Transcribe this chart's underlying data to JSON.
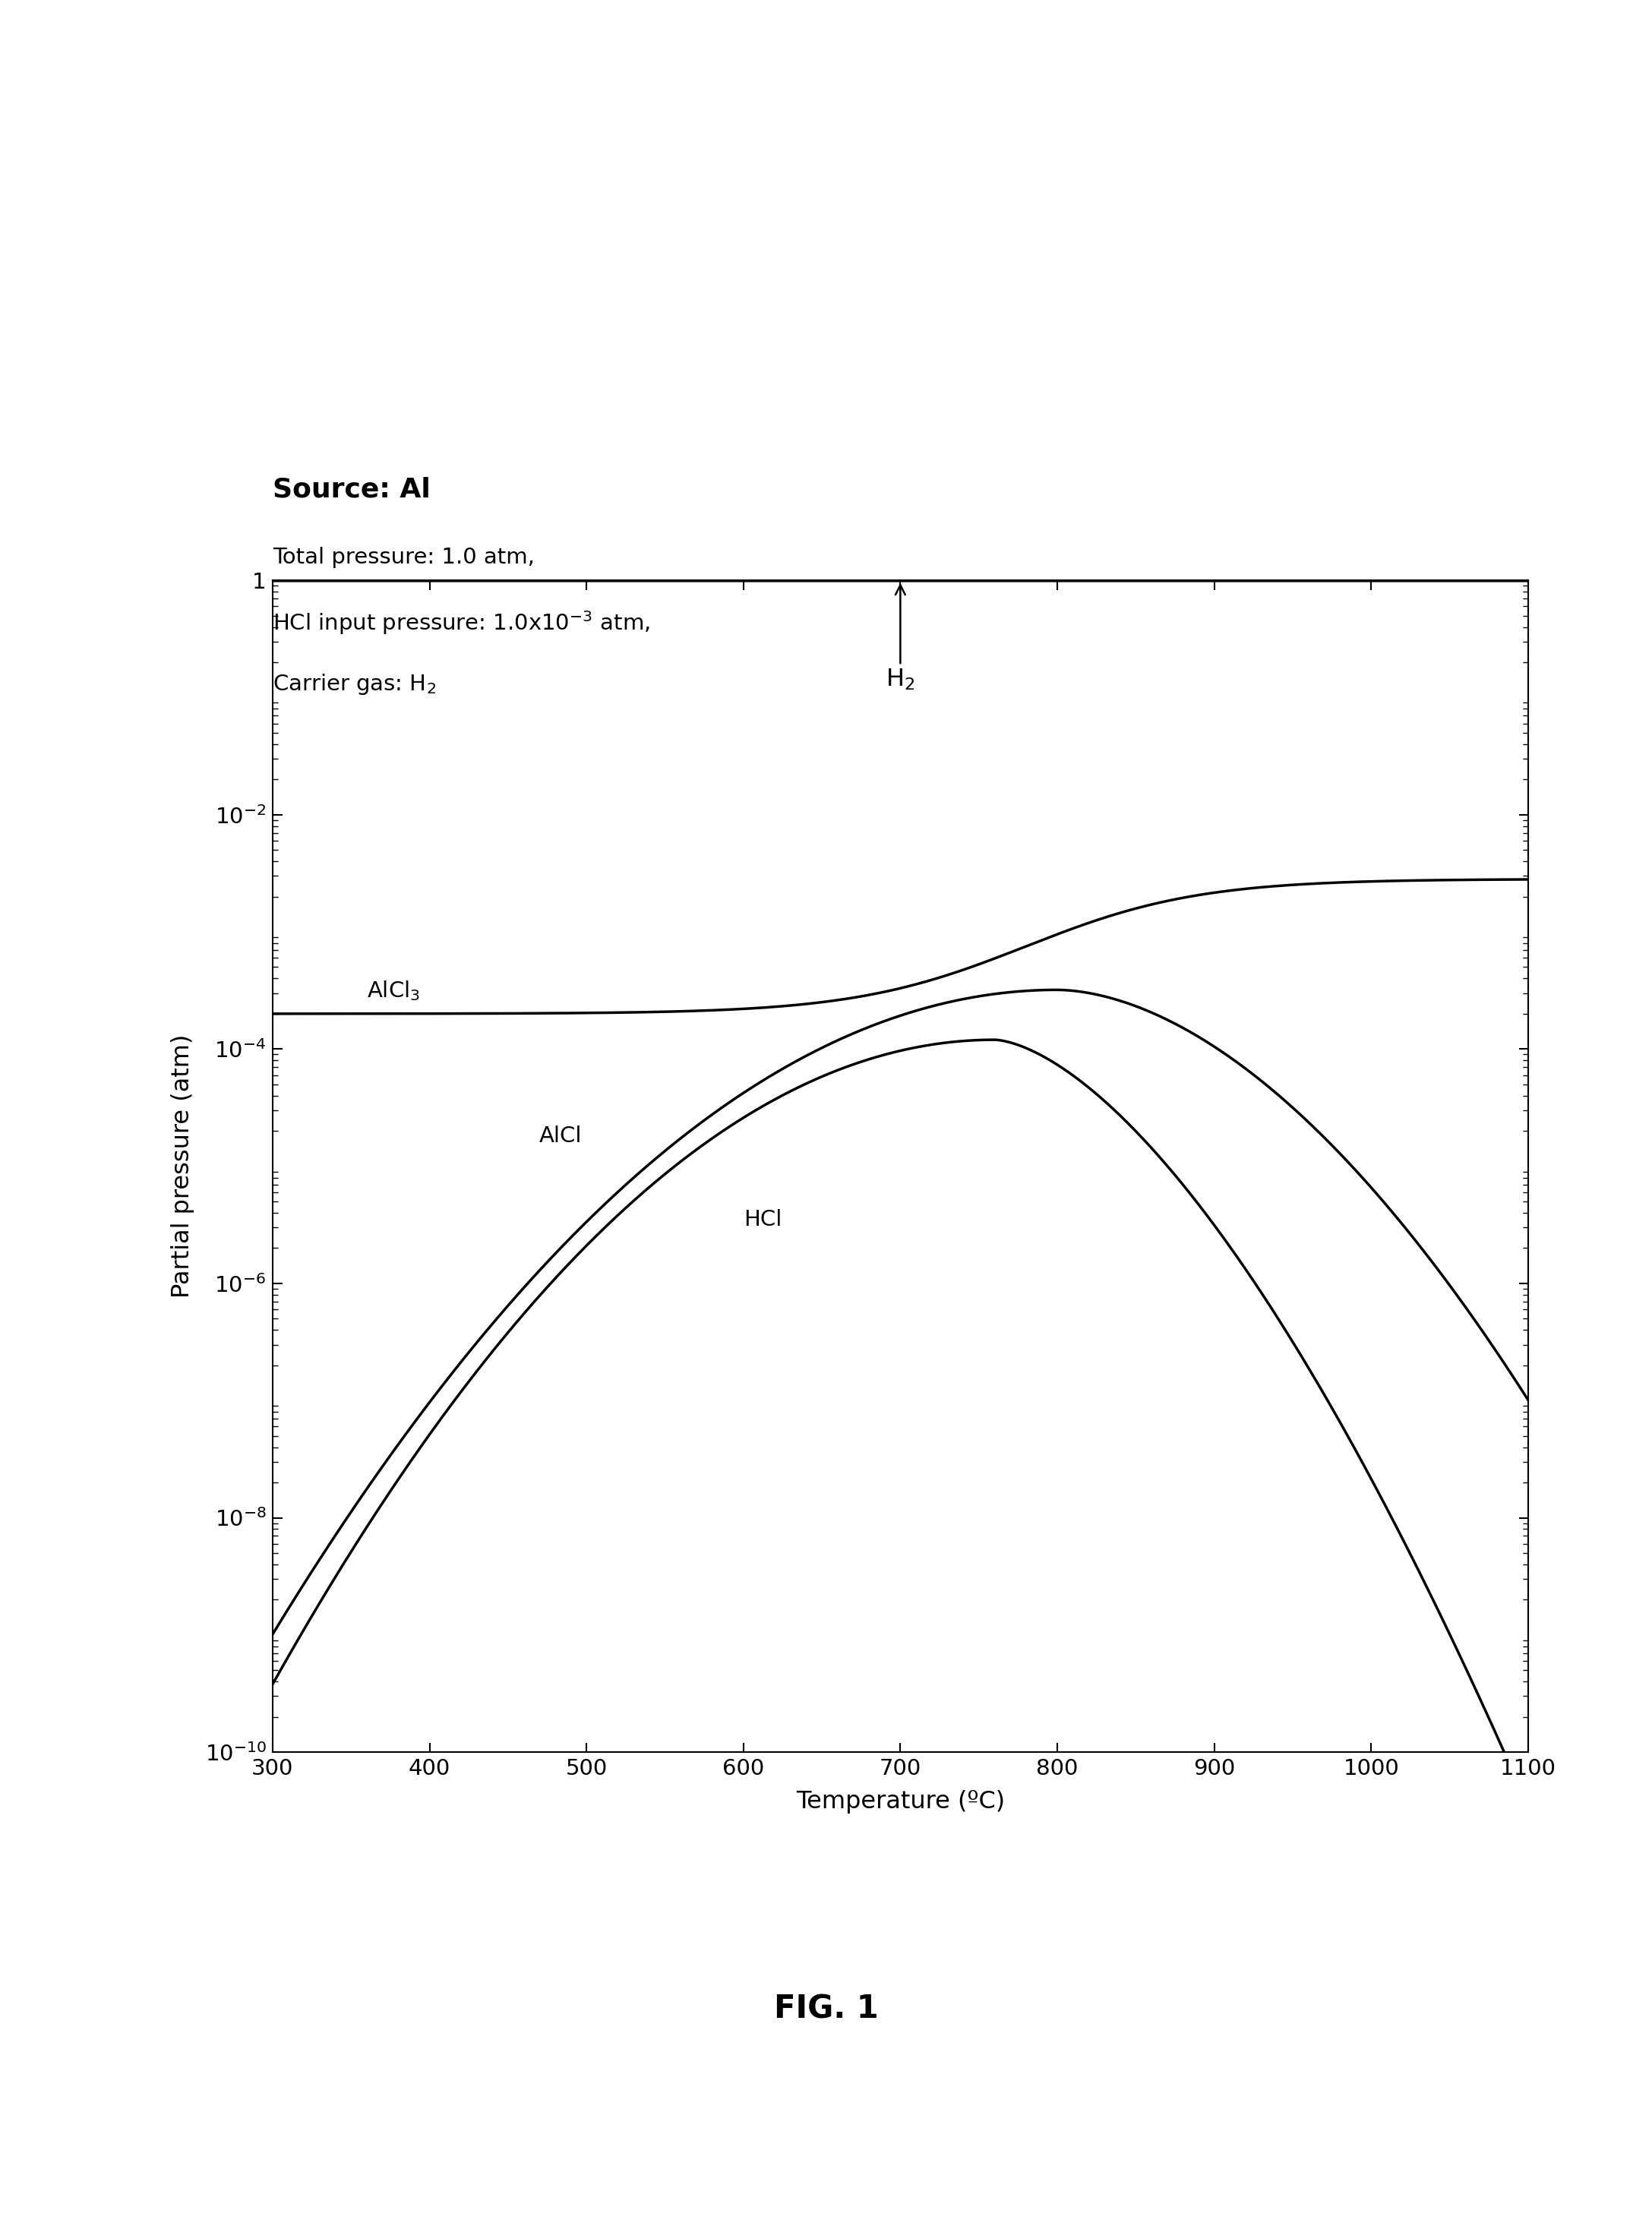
{
  "title_line1": "Source: Al",
  "xlabel": "Temperature (ºC)",
  "ylabel": "Partial pressure (atm)",
  "fig_label": "FIG. 1",
  "xmin": 300,
  "xmax": 1100,
  "ymin": 1e-10,
  "ymax": 1.0,
  "xticks": [
    300,
    400,
    500,
    600,
    700,
    800,
    900,
    1000,
    1100
  ],
  "background_color": "#ffffff",
  "line_color": "#000000",
  "curve_linewidth": 2.5,
  "H2_label": "H$_2$",
  "AlCl3_label": "AlCl$_3$",
  "AlCl_label": "AlCl",
  "HCl_label": "HCl",
  "subtitle_line1": "Total pressure: 1.0 atm,",
  "subtitle_line2": "HCl input pressure: 1.0x10$^{-3}$ atm,",
  "subtitle_line3": "Carrier gas: H$_2$"
}
